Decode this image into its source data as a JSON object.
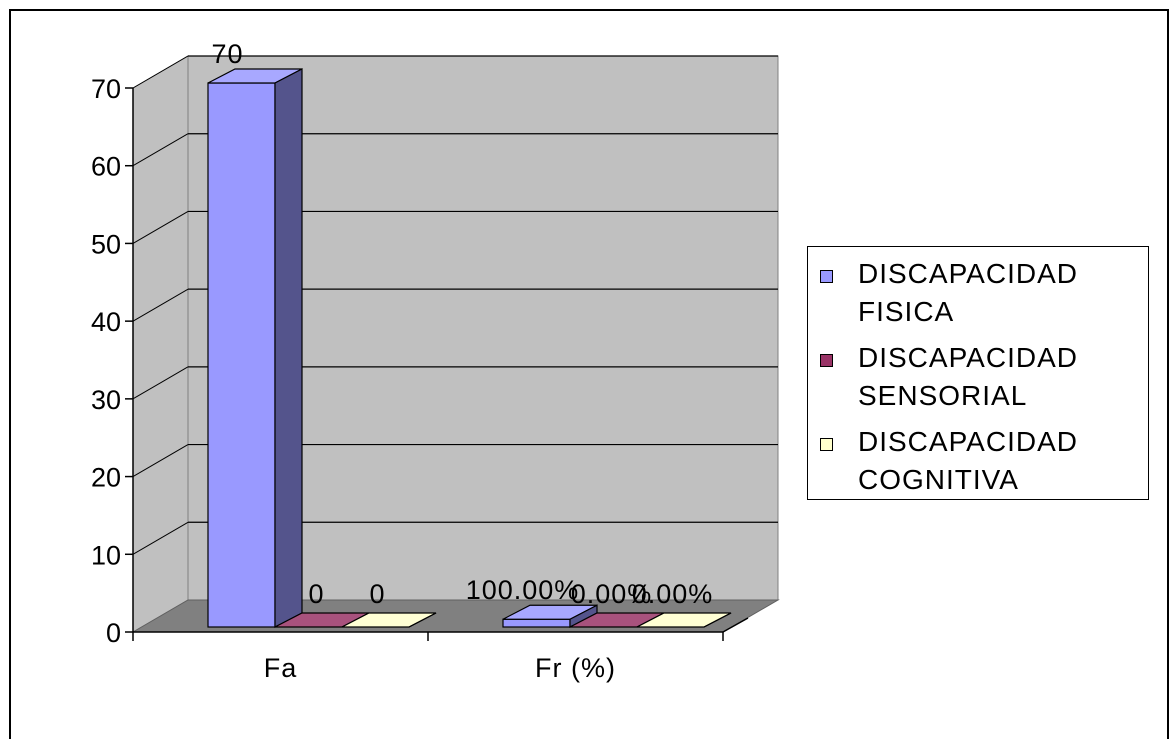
{
  "chart_data": {
    "type": "bar",
    "categories": [
      "Fa",
      "Fr (%)"
    ],
    "ylim": [
      0,
      70
    ],
    "yticks": [
      0,
      10,
      20,
      30,
      40,
      50,
      60,
      70
    ],
    "grid": true,
    "legend_position": "right",
    "series": [
      {
        "name": "DISCAPACIDAD FISICA",
        "values": [
          70,
          1
        ],
        "labels": [
          "70",
          "100.00%"
        ],
        "color": "#9999ff"
      },
      {
        "name": "DISCAPACIDAD SENSORIAL",
        "values": [
          0,
          0
        ],
        "labels": [
          "0",
          "0.00%"
        ],
        "color": "#993366"
      },
      {
        "name": "DISCAPACIDAD COGNITIVA",
        "values": [
          0,
          0
        ],
        "labels": [
          "0",
          "0.00%"
        ],
        "color": "#ffffcc"
      }
    ]
  },
  "legend": {
    "items": [
      {
        "line1": "DISCAPACIDAD",
        "line2": "FISICA"
      },
      {
        "line1": "DISCAPACIDAD",
        "line2": "SENSORIAL"
      },
      {
        "line1": "DISCAPACIDAD",
        "line2": "COGNITIVA"
      }
    ]
  }
}
